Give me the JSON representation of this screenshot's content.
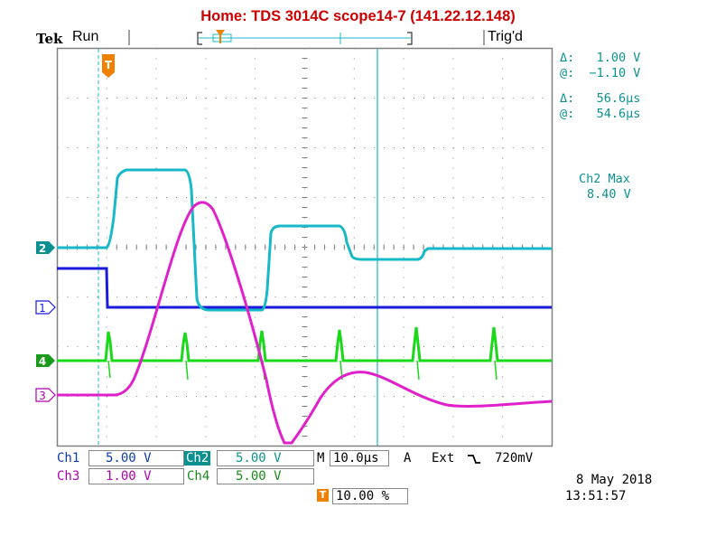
{
  "title": "Home:  TDS 3014C  scope14-7  (141.22.12.148)",
  "header": {
    "brand": "Tek",
    "run_state": "Run",
    "trigger_state": "Trig'd"
  },
  "cursor_readout": {
    "v_delta_label": "Δ:",
    "v_delta": "1.00 V",
    "v_at_label": "@:",
    "v_at": "−1.10 V",
    "t_delta_label": "Δ:",
    "t_delta": "56.6µs",
    "t_at_label": "@:",
    "t_at": "54.6µs"
  },
  "measurement": {
    "label": "Ch2 Max",
    "value": "8.40 V"
  },
  "channels": [
    {
      "name": "Ch1",
      "scale": "5.00 V",
      "marker": "1",
      "color": "#1a1adb"
    },
    {
      "name": "Ch2",
      "scale": "5.00 V",
      "marker": "2",
      "color": "#17b8c8"
    },
    {
      "name": "Ch3",
      "scale": "1.00 V",
      "marker": "3",
      "color": "#e020c8"
    },
    {
      "name": "Ch4",
      "scale": "5.00 V",
      "marker": "4",
      "color": "#1ad81a"
    }
  ],
  "timebase": {
    "mode": "M",
    "scale": "10.0µs",
    "trigger_mode": "A",
    "source": "Ext",
    "slope_icon": "falling-edge-icon",
    "level": "720mV"
  },
  "trigger_position": {
    "marker": "T",
    "value": "10.00 %"
  },
  "datetime": {
    "date": "8 May 2018",
    "time": "13:51:57"
  },
  "colors": {
    "grid": "#808080",
    "readout": "#0e9090",
    "ch_label": "#0b3ca8",
    "ch3_label": "#b000b0",
    "trigger": "#f08000",
    "title": "#cc0000"
  }
}
